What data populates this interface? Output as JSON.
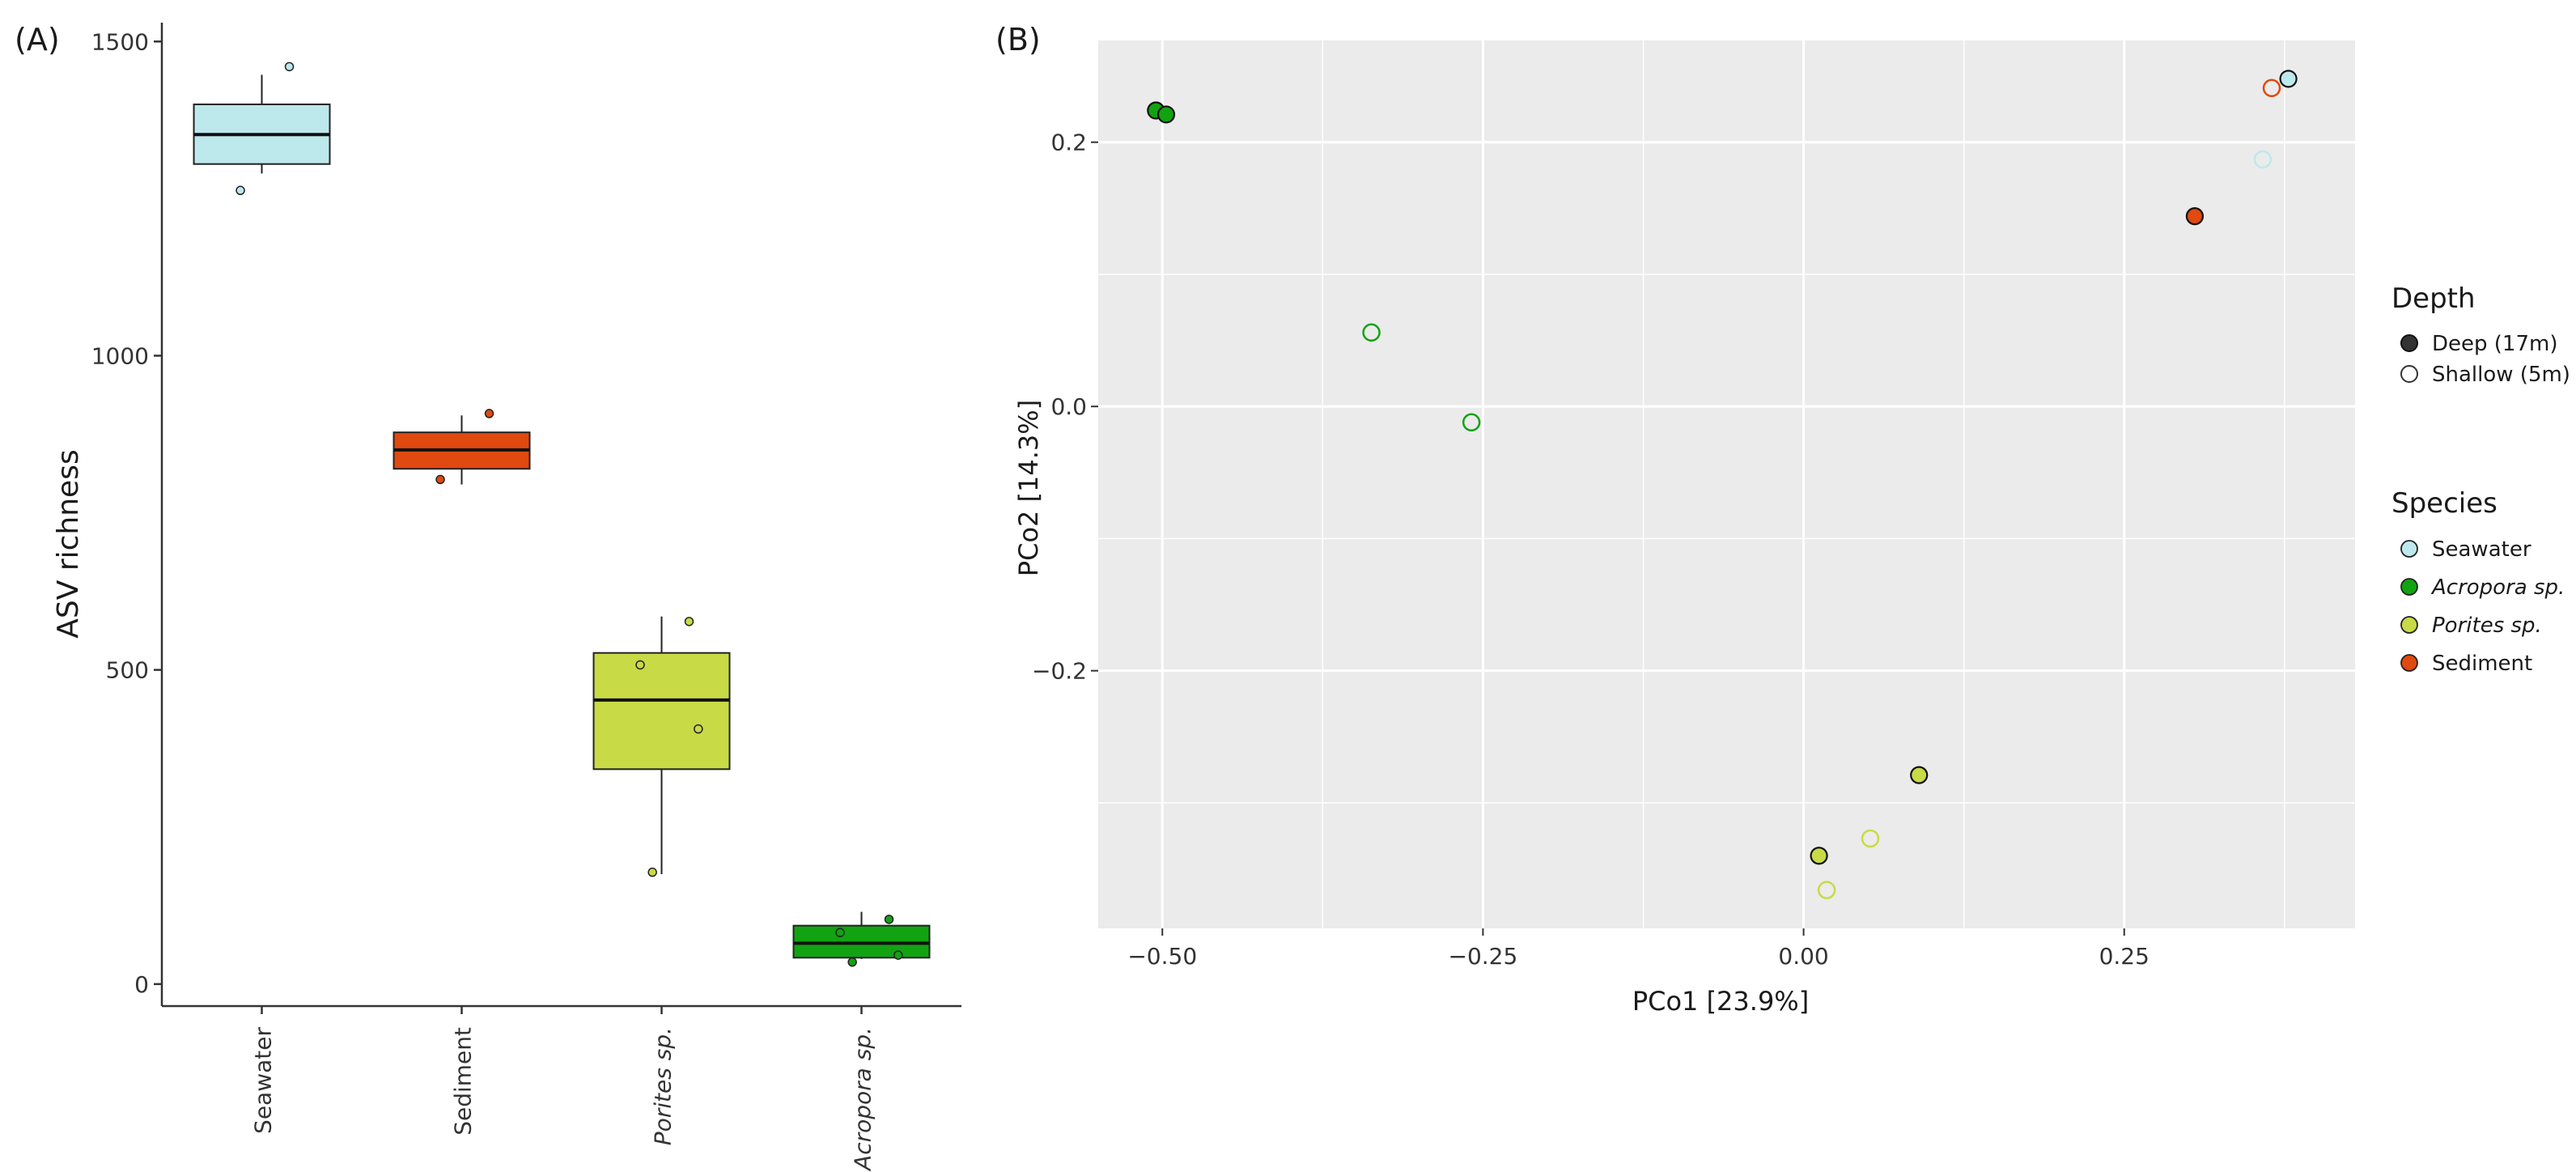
{
  "chart_data": [
    {
      "panel_label": "(A)",
      "type": "box",
      "categories": [
        "Seawater",
        "Sediment",
        "Porites sp.",
        "Acropora sp."
      ],
      "italic_categories": [
        false,
        false,
        true,
        true
      ],
      "ylabel": "ASV richness",
      "xlabel": "",
      "ylim": [
        -35,
        1530
      ],
      "yticks": [
        0,
        500,
        1000,
        1500
      ],
      "grid": false,
      "boxes": [
        {
          "category": "Seawater",
          "color": "#BDE8EC",
          "whisker_low": 1290,
          "q1": 1305,
          "median": 1352,
          "q3": 1400,
          "whisker_high": 1447,
          "points": [
            1460,
            1263
          ],
          "point_color": "#BDE8EC"
        },
        {
          "category": "Sediment",
          "color": "#E0490F",
          "whisker_low": 795,
          "q1": 820,
          "median": 850,
          "q3": 878,
          "whisker_high": 905,
          "points": [
            908,
            803
          ],
          "point_color": "#E0490F"
        },
        {
          "category": "Porites sp.",
          "color": "#C8DA46",
          "whisker_low": 175,
          "q1": 342,
          "median": 452,
          "q3": 527,
          "whisker_high": 585,
          "points": [
            577,
            508,
            406,
            178
          ],
          "point_color": "#C8DA46"
        },
        {
          "category": "Acropora sp.",
          "color": "#12A312",
          "whisker_low": 40,
          "q1": 42,
          "median": 65,
          "q3": 93,
          "whisker_high": 115,
          "points": [
            103,
            82,
            46,
            35
          ],
          "point_color": "#12A312"
        }
      ]
    },
    {
      "panel_label": "(B)",
      "type": "scatter",
      "xlabel": "PCo1 [23.9%]",
      "ylabel": "PCo2 [14.3%]",
      "xlim": [
        -0.55,
        0.43
      ],
      "ylim": [
        -0.395,
        0.277
      ],
      "xticks": [
        -0.5,
        -0.25,
        0.0,
        0.25
      ],
      "xtick_labels": [
        "−0.50",
        "−0.25",
        "0.00",
        "0.25"
      ],
      "yticks": [
        -0.2,
        0.0,
        0.2
      ],
      "ytick_labels": [
        "−0.2",
        "0.0",
        "0.2"
      ],
      "grid": true,
      "background": "#EBEBEB",
      "points": [
        {
          "x": -0.505,
          "y": 0.224,
          "species": "Acropora sp.",
          "depth": "Deep (17m)"
        },
        {
          "x": -0.497,
          "y": 0.221,
          "species": "Acropora sp.",
          "depth": "Deep (17m)"
        },
        {
          "x": -0.337,
          "y": 0.056,
          "species": "Acropora sp.",
          "depth": "Shallow (5m)"
        },
        {
          "x": -0.259,
          "y": -0.012,
          "species": "Acropora sp.",
          "depth": "Shallow (5m)"
        },
        {
          "x": 0.378,
          "y": 0.248,
          "species": "Seawater",
          "depth": "Deep (17m)"
        },
        {
          "x": 0.358,
          "y": 0.187,
          "species": "Seawater",
          "depth": "Shallow (5m)"
        },
        {
          "x": 0.365,
          "y": 0.241,
          "species": "Sediment",
          "depth": "Shallow (5m)"
        },
        {
          "x": 0.305,
          "y": 0.144,
          "species": "Sediment",
          "depth": "Deep (17m)"
        },
        {
          "x": 0.09,
          "y": -0.279,
          "species": "Porites sp.",
          "depth": "Deep (17m)"
        },
        {
          "x": 0.012,
          "y": -0.34,
          "species": "Porites sp.",
          "depth": "Deep (17m)"
        },
        {
          "x": 0.052,
          "y": -0.327,
          "species": "Porites sp.",
          "depth": "Shallow (5m)"
        },
        {
          "x": 0.018,
          "y": -0.366,
          "species": "Porites sp.",
          "depth": "Shallow (5m)"
        }
      ],
      "legend": {
        "placement": "right",
        "depth": {
          "title": "Depth",
          "items": [
            {
              "label": "Deep (17m)",
              "filled": true
            },
            {
              "label": "Shallow (5m)",
              "filled": false
            }
          ]
        },
        "species": {
          "title": "Species",
          "items": [
            {
              "label": "Seawater",
              "color": "#BDE8EC",
              "italic": false
            },
            {
              "label": "Acropora sp.",
              "color": "#12A312",
              "italic": true
            },
            {
              "label": "Porites sp.",
              "color": "#C8DA46",
              "italic": true
            },
            {
              "label": "Sediment",
              "color": "#E0490F",
              "italic": false
            }
          ]
        }
      }
    }
  ]
}
